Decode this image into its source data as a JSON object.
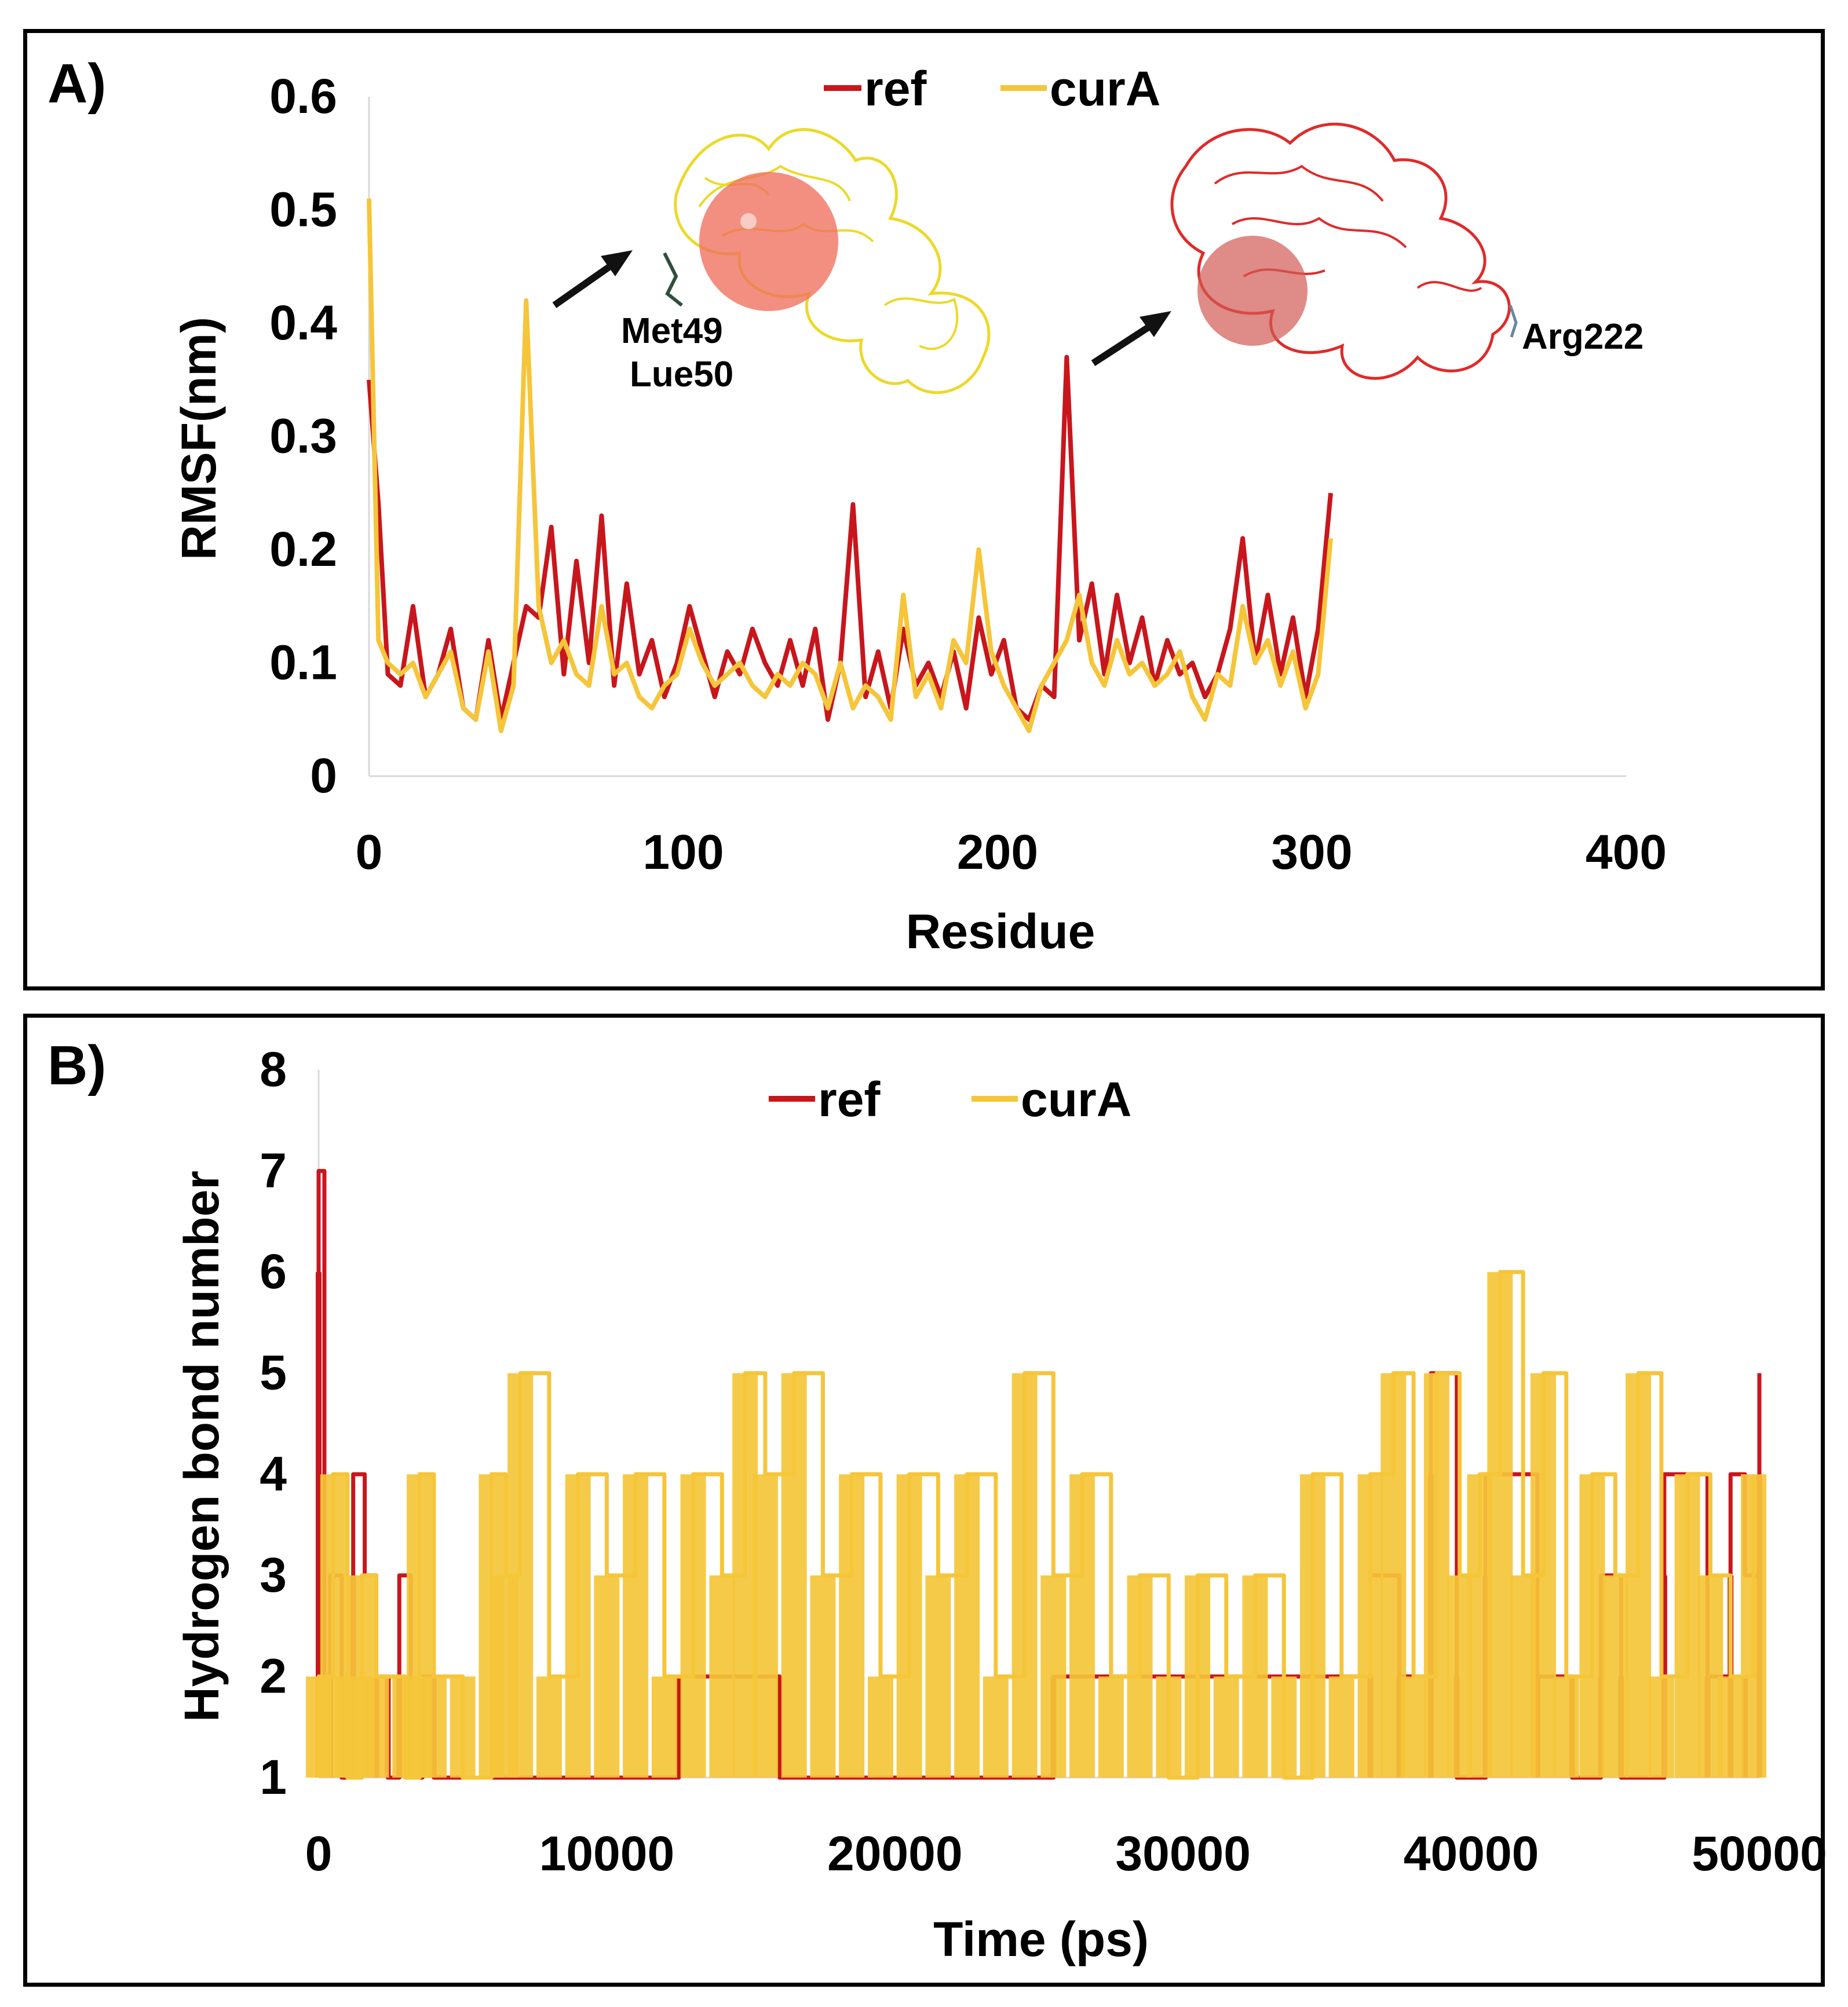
{
  "colors": {
    "ref": "#c8161d",
    "curA": "#f5c53a",
    "arrow": "#111111",
    "sphere": "#ef6f5e"
  },
  "chart_data": [
    {
      "panel_label": "A)",
      "type": "line",
      "xlabel": "Residue",
      "ylabel": "RMSF(nm)",
      "xlim": [
        0,
        400
      ],
      "ylim": [
        0,
        0.6
      ],
      "x_ticks": [
        "0",
        "100",
        "200",
        "300",
        "400"
      ],
      "y_ticks": [
        "0",
        "0.1",
        "0.2",
        "0.3",
        "0.4",
        "0.5",
        "0.6"
      ],
      "legend": [
        "ref",
        "curA"
      ],
      "legend_position": "top-center",
      "annotations": [
        "Met49",
        "Lue50",
        "Arg222"
      ],
      "series": [
        {
          "name": "ref",
          "x": [
            0,
            3,
            6,
            10,
            14,
            18,
            22,
            26,
            30,
            34,
            38,
            42,
            46,
            50,
            54,
            58,
            62,
            66,
            70,
            74,
            78,
            82,
            86,
            90,
            94,
            98,
            102,
            106,
            110,
            114,
            118,
            122,
            126,
            130,
            134,
            138,
            142,
            146,
            150,
            154,
            158,
            162,
            166,
            170,
            174,
            178,
            182,
            186,
            190,
            194,
            198,
            202,
            206,
            210,
            214,
            218,
            222,
            226,
            230,
            234,
            238,
            242,
            246,
            250,
            254,
            258,
            262,
            266,
            270,
            274,
            278,
            282,
            286,
            290,
            294,
            298,
            302,
            306
          ],
          "values": [
            0.35,
            0.24,
            0.09,
            0.08,
            0.15,
            0.07,
            0.09,
            0.13,
            0.06,
            0.05,
            0.12,
            0.05,
            0.1,
            0.15,
            0.14,
            0.22,
            0.09,
            0.19,
            0.1,
            0.23,
            0.08,
            0.17,
            0.09,
            0.12,
            0.07,
            0.1,
            0.15,
            0.11,
            0.07,
            0.11,
            0.09,
            0.13,
            0.1,
            0.08,
            0.12,
            0.08,
            0.13,
            0.05,
            0.1,
            0.24,
            0.07,
            0.11,
            0.06,
            0.13,
            0.08,
            0.1,
            0.07,
            0.11,
            0.06,
            0.14,
            0.09,
            0.12,
            0.06,
            0.05,
            0.08,
            0.07,
            0.37,
            0.12,
            0.17,
            0.09,
            0.16,
            0.1,
            0.14,
            0.08,
            0.12,
            0.09,
            0.1,
            0.07,
            0.09,
            0.13,
            0.21,
            0.1,
            0.16,
            0.09,
            0.14,
            0.07,
            0.13,
            0.25
          ]
        },
        {
          "name": "curA",
          "x": [
            0,
            3,
            6,
            10,
            14,
            18,
            22,
            26,
            30,
            34,
            38,
            42,
            46,
            50,
            54,
            58,
            62,
            66,
            70,
            74,
            78,
            82,
            86,
            90,
            94,
            98,
            102,
            106,
            110,
            114,
            118,
            122,
            126,
            130,
            134,
            138,
            142,
            146,
            150,
            154,
            158,
            162,
            166,
            170,
            174,
            178,
            182,
            186,
            190,
            194,
            198,
            202,
            206,
            210,
            214,
            218,
            222,
            226,
            230,
            234,
            238,
            242,
            246,
            250,
            254,
            258,
            262,
            266,
            270,
            274,
            278,
            282,
            286,
            290,
            294,
            298,
            302,
            306
          ],
          "values": [
            0.51,
            0.12,
            0.1,
            0.09,
            0.1,
            0.07,
            0.09,
            0.11,
            0.06,
            0.05,
            0.11,
            0.04,
            0.08,
            0.42,
            0.15,
            0.1,
            0.12,
            0.09,
            0.08,
            0.15,
            0.09,
            0.1,
            0.07,
            0.06,
            0.08,
            0.09,
            0.13,
            0.1,
            0.08,
            0.09,
            0.1,
            0.08,
            0.07,
            0.09,
            0.08,
            0.1,
            0.09,
            0.06,
            0.1,
            0.06,
            0.08,
            0.07,
            0.05,
            0.16,
            0.07,
            0.09,
            0.06,
            0.12,
            0.1,
            0.2,
            0.11,
            0.08,
            0.06,
            0.04,
            0.08,
            0.1,
            0.12,
            0.16,
            0.1,
            0.08,
            0.12,
            0.09,
            0.1,
            0.08,
            0.09,
            0.11,
            0.07,
            0.05,
            0.09,
            0.08,
            0.15,
            0.1,
            0.12,
            0.08,
            0.11,
            0.06,
            0.09,
            0.21
          ]
        }
      ]
    },
    {
      "panel_label": "B)",
      "type": "line",
      "xlabel": "Time (ps)",
      "ylabel": "Hydrogen bond number",
      "xlim": [
        0,
        50000
      ],
      "ylim": [
        1,
        8
      ],
      "x_ticks": [
        "0",
        "10000",
        "20000",
        "30000",
        "40000",
        "50000"
      ],
      "y_ticks": [
        "1",
        "2",
        "3",
        "4",
        "5",
        "6",
        "7",
        "8"
      ],
      "legend": [
        "ref",
        "curA"
      ],
      "legend_position": "top-center",
      "series": [
        {
          "name": "ref",
          "x": [
            0,
            200,
            400,
            800,
            1200,
            1600,
            2000,
            2400,
            2800,
            3200,
            3600,
            4000,
            12500,
            16000,
            25500,
            36500,
            37500,
            38600,
            39500,
            40500,
            42300,
            43500,
            44500,
            45200,
            46700,
            48200,
            49000,
            49500,
            50000
          ],
          "values": [
            7,
            2,
            3,
            1,
            4,
            3,
            2,
            1,
            3,
            1,
            2,
            1,
            2,
            1,
            2,
            3,
            2,
            5,
            1,
            4,
            2,
            1,
            3,
            1,
            4,
            2,
            4,
            3,
            5
          ]
        },
        {
          "name": "curA",
          "x": [
            0,
            500,
            1000,
            1500,
            2000,
            3000,
            3500,
            4000,
            5000,
            6000,
            6500,
            7000,
            8000,
            9000,
            10000,
            11000,
            12000,
            13000,
            14000,
            14800,
            15500,
            16500,
            17500,
            18500,
            19500,
            20500,
            21500,
            22500,
            23500,
            24500,
            25500,
            26500,
            27500,
            28500,
            29500,
            30500,
            31500,
            32500,
            33500,
            34500,
            35500,
            36500,
            37300,
            38000,
            38800,
            39600,
            40300,
            41000,
            41800,
            42500,
            43300,
            44200,
            45000,
            45800,
            46600,
            47500,
            48300,
            49000,
            49800
          ],
          "values": [
            2,
            4,
            1,
            3,
            2,
            1,
            4,
            2,
            1,
            4,
            3,
            5,
            2,
            4,
            3,
            4,
            2,
            4,
            3,
            5,
            4,
            5,
            3,
            4,
            2,
            4,
            3,
            4,
            2,
            5,
            3,
            4,
            2,
            3,
            1,
            3,
            2,
            3,
            1,
            4,
            2,
            4,
            5,
            2,
            5,
            3,
            4,
            6,
            3,
            5,
            2,
            4,
            3,
            5,
            2,
            4,
            3,
            2,
            4
          ]
        }
      ]
    }
  ]
}
